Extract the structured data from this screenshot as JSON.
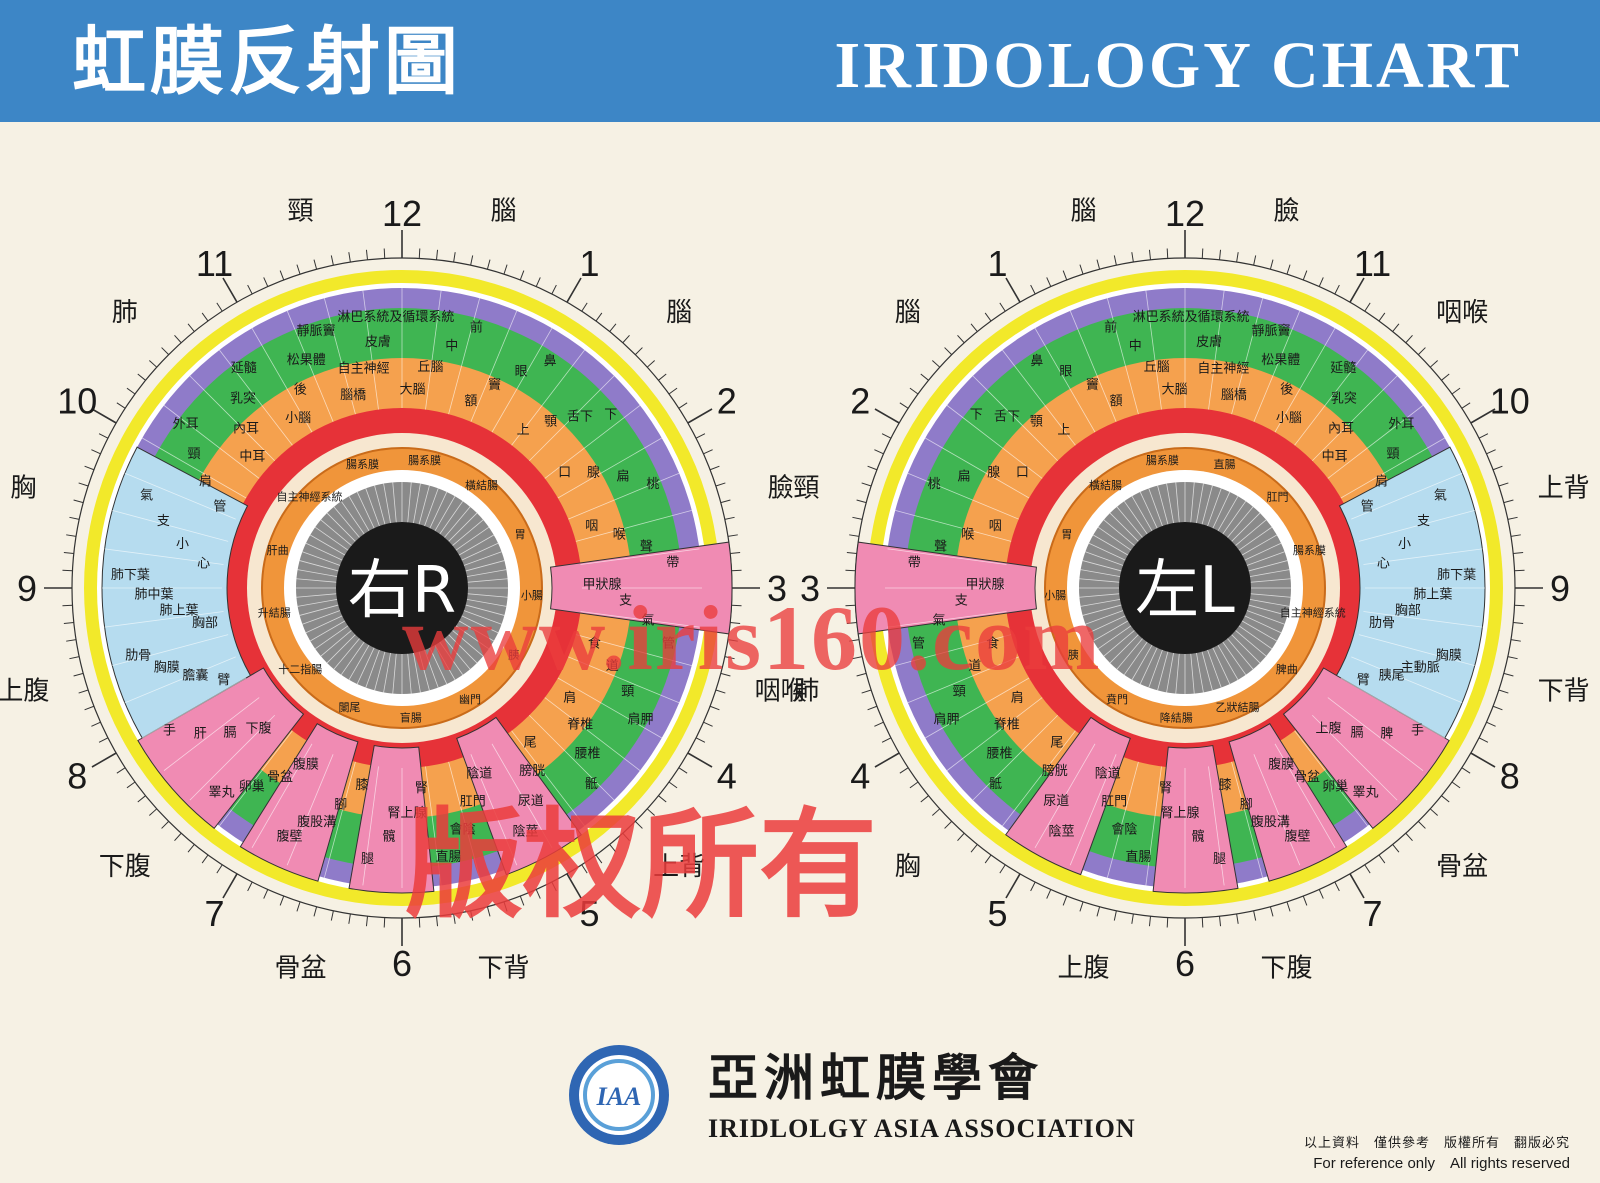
{
  "header": {
    "title_zh": "虹膜反射圖",
    "title_en": "IRIDOLOGY CHART"
  },
  "colors": {
    "header": "#3d86c6",
    "background": "#f6f1e4",
    "outer_yellow": "#f2e92a",
    "purple": "#8f7bc9",
    "green": "#3fb552",
    "orange": "#f5a14e",
    "red": "#e63238",
    "pink": "#f08bb3",
    "light_blue": "#b6dcef",
    "pupil": "#1a1a1a",
    "iris_gray": "#8a8a8a",
    "watermark": "#e83c3c"
  },
  "charts": [
    {
      "id": "right",
      "pupil_label": "右R",
      "clock": [
        "12",
        "1",
        "2",
        "3",
        "4",
        "5",
        "6",
        "7",
        "8",
        "9",
        "10",
        "11"
      ],
      "outer_labels": [
        "腦",
        "腦",
        "臉",
        "咽喉",
        "上背",
        "下背",
        "骨盆",
        "下腹",
        "上腹",
        "胸",
        "肺",
        "頸"
      ],
      "ring_labels": [
        "大腦",
        "丘腦",
        "中",
        "前",
        "額",
        "竇",
        "眼",
        "鼻",
        "上",
        "顎",
        "舌下",
        "下",
        "口",
        "腺",
        "扁",
        "桃",
        "咽",
        "喉",
        "聲",
        "帶",
        "甲狀腺",
        "支",
        "氣",
        "管",
        "食",
        "道",
        "頸",
        "肩胛",
        "肩",
        "脊椎",
        "腰椎",
        "骶",
        "尾",
        "膀胱",
        "尿道",
        "陰莖",
        "陰道",
        "肛門",
        "會陰",
        "直腸",
        "腎",
        "腎上腺",
        "髖",
        "腿",
        "膝",
        "腳",
        "腹股溝",
        "腹壁",
        "腹膜",
        "骨盆",
        "卵巢",
        "睪丸",
        "下腹",
        "膈",
        "肝",
        "手",
        "臂",
        "膽囊",
        "胸膜",
        "肋骨",
        "胸部",
        "肺上葉",
        "肺中葉",
        "肺下葉",
        "心",
        "小",
        "支",
        "氣",
        "管",
        "肩",
        "頸",
        "外耳",
        "中耳",
        "內耳",
        "乳突",
        "延髓",
        "小腦",
        "後",
        "松果體",
        "靜脈竇",
        "腦橋",
        "自主神經",
        "皮膚",
        "淋巴系統及循環系統"
      ],
      "inner_labels": [
        "腸系膜",
        "橫結腸",
        "胃",
        "小腸",
        "胰",
        "幽門",
        "盲腸",
        "闌尾",
        "十二指腸",
        "升結腸",
        "肝曲",
        "自主神經系統",
        "腸系膜"
      ]
    },
    {
      "id": "left",
      "pupil_label": "左L",
      "clock": [
        "12",
        "1",
        "2",
        "3",
        "4",
        "5",
        "6",
        "7",
        "8",
        "9",
        "10",
        "11"
      ],
      "outer_labels": [
        "腦",
        "腦",
        "頸",
        "肺",
        "胸",
        "上腹",
        "下腹",
        "骨盆",
        "下背",
        "上背",
        "咽喉",
        "臉"
      ],
      "ring_labels": [
        "大腦",
        "丘腦",
        "中",
        "前",
        "額",
        "竇",
        "眼",
        "鼻",
        "上",
        "顎",
        "舌下",
        "下",
        "口",
        "腺",
        "扁",
        "桃",
        "咽",
        "喉",
        "聲",
        "帶",
        "甲狀腺",
        "支",
        "氣",
        "管",
        "食",
        "道",
        "頸",
        "肩胛",
        "肩",
        "脊椎",
        "腰椎",
        "骶",
        "尾",
        "膀胱",
        "尿道",
        "陰莖",
        "陰道",
        "肛門",
        "會陰",
        "直腸",
        "腎",
        "腎上腺",
        "髖",
        "腿",
        "膝",
        "腳",
        "腹股溝",
        "腹壁",
        "腹膜",
        "骨盆",
        "卵巢",
        "睪丸",
        "上腹",
        "膈",
        "脾",
        "手",
        "臂",
        "胰尾",
        "主動脈",
        "胸膜",
        "肋骨",
        "胸部",
        "肺上葉",
        "肺下葉",
        "心",
        "小",
        "支",
        "氣",
        "管",
        "肩",
        "頸",
        "外耳",
        "中耳",
        "內耳",
        "乳突",
        "延髓",
        "小腦",
        "後",
        "松果體",
        "靜脈竇",
        "腦橋",
        "自主神經",
        "皮膚",
        "淋巴系統及循環系統"
      ],
      "inner_labels": [
        "腸系膜",
        "橫結腸",
        "胃",
        "小腸",
        "胰",
        "賁門",
        "降結腸",
        "乙狀結腸",
        "脾曲",
        "自主神經系統",
        "腸系膜",
        "肛門",
        "直腸"
      ]
    }
  ],
  "watermark": {
    "url": "www.iris160.com",
    "copyright": "版权所有"
  },
  "footer": {
    "logo_text": "IAA",
    "org_zh": "亞洲虹膜學會",
    "org_en": "IRIDLOLGY ASIA ASSOCIATION",
    "note_zh": "以上資料　僅供參考　版權所有　翻版必究",
    "note_en": "For reference only　All rights reserved"
  }
}
